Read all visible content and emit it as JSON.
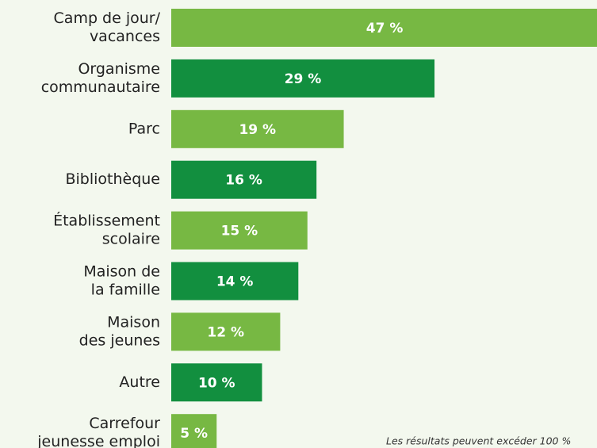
{
  "chart_data": {
    "type": "hbar",
    "categories": [
      [
        "Camp de jour/",
        "vacances"
      ],
      [
        "Organisme",
        "communautaire"
      ],
      [
        "Parc"
      ],
      [
        "Bibliothèque"
      ],
      [
        "Établissement",
        "scolaire"
      ],
      [
        "Maison de",
        "la famille"
      ],
      [
        "Maison",
        "des jeunes"
      ],
      [
        "Autre"
      ],
      [
        "Carrefour",
        "jeunesse emploi"
      ]
    ],
    "values": [
      47,
      29,
      19,
      16,
      15,
      14,
      12,
      10,
      5
    ],
    "value_labels": [
      "47 %",
      "29 %",
      "19 %",
      "16 %",
      "15 %",
      "14 %",
      "12 %",
      "10 %",
      "5 %"
    ],
    "colors": [
      "#77b843",
      "#128f3f",
      "#77b843",
      "#128f3f",
      "#77b843",
      "#128f3f",
      "#77b843",
      "#128f3f",
      "#77b843"
    ],
    "note": "Les résultats peuvent excéder 100 %"
  }
}
